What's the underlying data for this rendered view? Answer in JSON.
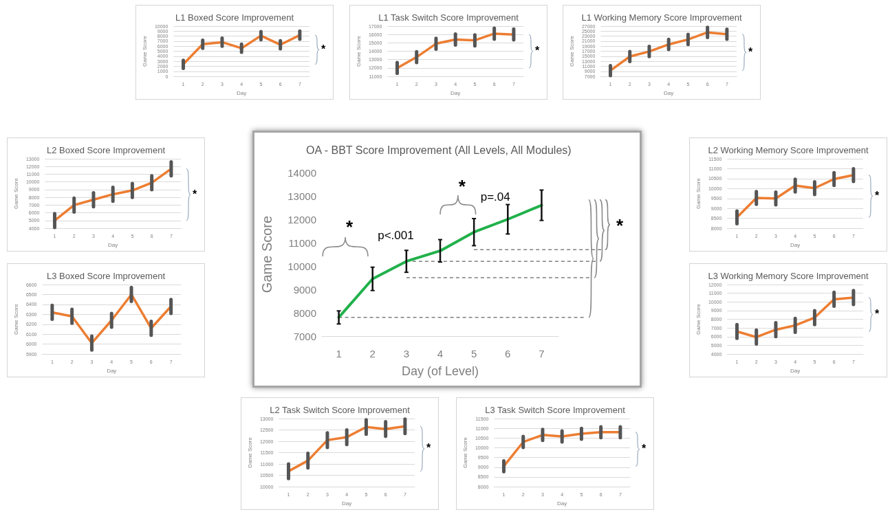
{
  "chart_data": [
    {
      "type": "line",
      "title": "L1 Boxed Score Improvement",
      "xlabel": "Day",
      "ylabel": "Game Score",
      "categories": [
        "1",
        "2",
        "3",
        "4",
        "5",
        "6",
        "7"
      ],
      "series": [
        {
          "color": "#ed7d31",
          "values": [
            2400,
            6400,
            6800,
            5600,
            8100,
            6300,
            8200
          ],
          "errors": [
            800,
            800,
            800,
            800,
            800,
            800,
            800
          ]
        }
      ],
      "ylim": [
        0,
        10000
      ],
      "yticks": [
        0,
        1000,
        2000,
        3000,
        4000,
        5000,
        6000,
        7000,
        8000,
        9000,
        10000
      ],
      "grid": "y",
      "annotations": [
        "*"
      ]
    },
    {
      "type": "line",
      "title": "L1 Task Switch Score Improvement",
      "xlabel": "Day",
      "ylabel": "Game Score",
      "categories": [
        "1",
        "2",
        "3",
        "4",
        "5",
        "6",
        "7"
      ],
      "series": [
        {
          "color": "#ed7d31",
          "values": [
            12000,
            13300,
            14900,
            15400,
            15300,
            16100,
            16000
          ],
          "errors": [
            650,
            650,
            650,
            650,
            650,
            650,
            650
          ]
        }
      ],
      "ylim": [
        11000,
        17000
      ],
      "yticks": [
        11000,
        12000,
        13000,
        14000,
        15000,
        16000,
        17000
      ],
      "grid": "y",
      "annotations": [
        "*"
      ]
    },
    {
      "type": "line",
      "title": "L1 Working Memory Score Improvement",
      "xlabel": "Day",
      "ylabel": "Game Score",
      "categories": [
        "1",
        "2",
        "3",
        "4",
        "5",
        "6",
        "7"
      ],
      "series": [
        {
          "color": "#ed7d31",
          "values": [
            9300,
            14900,
            16900,
            19700,
            21700,
            24500,
            23800
          ],
          "errors": [
            2000,
            2000,
            2000,
            2000,
            2000,
            2000,
            2000
          ]
        }
      ],
      "ylim": [
        7000,
        27000
      ],
      "yticks": [
        7000,
        9000,
        11000,
        13000,
        15000,
        17000,
        19000,
        21000,
        23000,
        25000,
        27000
      ],
      "grid": "y",
      "annotations": [
        "*"
      ]
    },
    {
      "type": "line",
      "title": "L2 Boxed Score Improvement",
      "xlabel": "Day",
      "ylabel": "Game Score",
      "categories": [
        "1",
        "2",
        "3",
        "4",
        "5",
        "6",
        "7"
      ],
      "series": [
        {
          "color": "#ed7d31",
          "values": [
            5000,
            7000,
            7700,
            8400,
            8900,
            9900,
            11700
          ],
          "errors": [
            900,
            900,
            900,
            900,
            900,
            900,
            900
          ]
        }
      ],
      "ylim": [
        4000,
        13000
      ],
      "yticks": [
        4000,
        5000,
        6000,
        7000,
        8000,
        9000,
        10000,
        11000,
        12000,
        13000
      ],
      "grid": "y",
      "annotations": [
        "*"
      ]
    },
    {
      "type": "line",
      "title": "OA - BBT Score Improvement (All Levels, All Modules)",
      "xlabel": "Day (of Level)",
      "ylabel": "Game Score",
      "categories": [
        "1",
        "2",
        "3",
        "4",
        "5",
        "6",
        "7"
      ],
      "series": [
        {
          "color": "#21b14b",
          "values": [
            7800,
            9450,
            10200,
            10650,
            11450,
            12000,
            12600
          ],
          "errors": [
            280,
            500,
            470,
            480,
            580,
            630,
            650
          ]
        }
      ],
      "ylim": [
        7000,
        14000
      ],
      "yticks": [
        7000,
        8000,
        9000,
        10000,
        11000,
        12000,
        13000,
        14000
      ],
      "grid": false,
      "ref_lines": [
        {
          "axis": "y",
          "value": 7800,
          "line_style": "dashed",
          "color": "#7f7f7f"
        },
        {
          "axis": "y",
          "value": 9500,
          "line_style": "dashed",
          "color": "#7f7f7f"
        },
        {
          "axis": "y",
          "value": 10200,
          "line_style": "dashed",
          "color": "#7f7f7f"
        },
        {
          "axis": "y",
          "value": 10700,
          "line_style": "dashed",
          "color": "#7f7f7f"
        }
      ],
      "annotations": [
        "*",
        "p<.001",
        "*",
        "p=.04",
        "*"
      ]
    },
    {
      "type": "line",
      "title": "L2 Working Memory Score Improvement",
      "xlabel": "Day",
      "ylabel": "Game Score",
      "categories": [
        "1",
        "2",
        "3",
        "4",
        "5",
        "6",
        "7"
      ],
      "series": [
        {
          "color": "#ed7d31",
          "values": [
            8550,
            9530,
            9500,
            10150,
            10020,
            10480,
            10680
          ],
          "errors": [
            320,
            320,
            320,
            320,
            320,
            320,
            320
          ]
        }
      ],
      "ylim": [
        8000,
        11500
      ],
      "yticks": [
        8000,
        8500,
        9000,
        9500,
        10000,
        10500,
        11000,
        11500
      ],
      "grid": "y",
      "annotations": [
        "*"
      ]
    },
    {
      "type": "line",
      "title": "L3 Boxed Score Improvement",
      "xlabel": "Day",
      "ylabel": "Game Score",
      "categories": [
        "1",
        "2",
        "3",
        "4",
        "5",
        "6",
        "7"
      ],
      "series": [
        {
          "color": "#ed7d31",
          "values": [
            6320,
            6280,
            6010,
            6240,
            6500,
            6160,
            6380
          ],
          "errors": [
            70,
            70,
            70,
            70,
            70,
            70,
            70
          ]
        }
      ],
      "ylim": [
        5900,
        6600
      ],
      "yticks": [
        5900,
        6000,
        6100,
        6200,
        6300,
        6400,
        6500,
        6600
      ],
      "grid": "y"
    },
    {
      "type": "line",
      "title": "L3 Working Memory Score Improvement",
      "xlabel": "Day",
      "ylabel": "Game Score",
      "categories": [
        "1",
        "2",
        "3",
        "4",
        "5",
        "6",
        "7"
      ],
      "series": [
        {
          "color": "#ed7d31",
          "values": [
            6600,
            5950,
            6800,
            7300,
            8200,
            10300,
            10500
          ],
          "errors": [
            800,
            800,
            800,
            800,
            800,
            800,
            800
          ]
        }
      ],
      "ylim": [
        4000,
        12000
      ],
      "yticks": [
        4000,
        5000,
        6000,
        7000,
        8000,
        9000,
        10000,
        11000,
        12000
      ],
      "grid": "y",
      "annotations": [
        "*"
      ]
    },
    {
      "type": "line",
      "title": "L2 Task Switch Score Improvement",
      "xlabel": "Day",
      "ylabel": "Game Score",
      "categories": [
        "1",
        "2",
        "3",
        "4",
        "5",
        "6",
        "7"
      ],
      "series": [
        {
          "color": "#ed7d31",
          "values": [
            10680,
            11150,
            12050,
            12180,
            12630,
            12540,
            12660
          ],
          "errors": [
            320,
            320,
            320,
            320,
            320,
            320,
            320
          ]
        }
      ],
      "ylim": [
        10000,
        13000
      ],
      "yticks": [
        10000,
        10500,
        11000,
        11500,
        12000,
        12500,
        13000
      ],
      "grid": "y",
      "annotations": [
        "*"
      ]
    },
    {
      "type": "line",
      "title": "L3 Task Switch Score Improvement",
      "xlabel": "Day",
      "ylabel": "Game Score",
      "categories": [
        "1",
        "2",
        "3",
        "4",
        "5",
        "6",
        "7"
      ],
      "series": [
        {
          "color": "#ed7d31",
          "values": [
            9050,
            10300,
            10660,
            10580,
            10720,
            10800,
            10800
          ],
          "errors": [
            280,
            280,
            280,
            280,
            280,
            280,
            280
          ]
        }
      ],
      "ylim": [
        8000,
        11500
      ],
      "yticks": [
        8000,
        8500,
        9000,
        9500,
        10000,
        10500,
        11000,
        11500
      ],
      "grid": "y",
      "annotations": [
        "*"
      ]
    }
  ]
}
